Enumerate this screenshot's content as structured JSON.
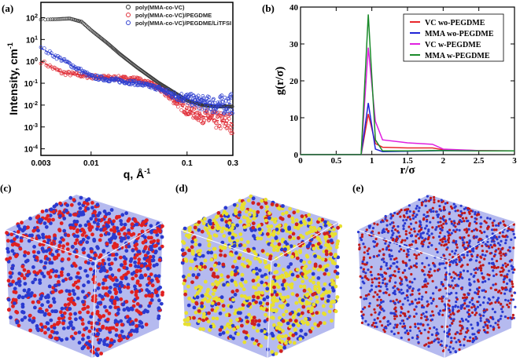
{
  "chart_data": [
    {
      "panel": "(a)",
      "type": "scatter",
      "xscale": "log",
      "yscale": "log",
      "xlabel": "q, Å",
      "xlabel_sup": "-1",
      "ylabel": "Intensity, cm",
      "ylabel_sup": "-1",
      "xlim": [
        0.003,
        0.3
      ],
      "ylim": [
        5e-05,
        500
      ],
      "xticks": [
        "0.003",
        "0.01",
        "0.1",
        "0.3"
      ],
      "xtick_values": [
        0.003,
        0.01,
        0.1,
        0.3
      ],
      "yticks": [
        {
          "base": "10",
          "exp": "2"
        },
        {
          "base": "10",
          "exp": "1"
        },
        {
          "base": "10",
          "exp": "0"
        },
        {
          "base": "10",
          "exp": "-1"
        },
        {
          "base": "10",
          "exp": "-2"
        },
        {
          "base": "10",
          "exp": "-3"
        },
        {
          "base": "10",
          "exp": "-4"
        }
      ],
      "ytick_values": [
        100,
        10,
        1,
        0.1,
        0.01,
        0.001,
        0.0001
      ],
      "legend": "top-right",
      "marker": "open-circle",
      "series": [
        {
          "name": "poly(MMA-co-VC)",
          "color": "#333333",
          "x": [
            0.003,
            0.004,
            0.006,
            0.008,
            0.01,
            0.015,
            0.02,
            0.03,
            0.05,
            0.07,
            0.1,
            0.15,
            0.2,
            0.3
          ],
          "y": [
            75,
            78,
            85,
            60,
            25,
            6,
            2,
            0.5,
            0.1,
            0.04,
            0.015,
            0.009,
            0.008,
            0.008
          ]
        },
        {
          "name": "poly(MMA-co-VC)/PEGDME",
          "color": "#e0303a",
          "x": [
            0.003,
            0.004,
            0.005,
            0.007,
            0.01,
            0.015,
            0.02,
            0.03,
            0.04,
            0.05,
            0.07,
            0.1,
            0.15,
            0.2,
            0.3
          ],
          "y": [
            1,
            0.5,
            0.3,
            0.25,
            0.2,
            0.18,
            0.17,
            0.15,
            0.1,
            0.06,
            0.02,
            0.006,
            0.003,
            0.002,
            0.0015
          ]
        },
        {
          "name": "poly(MMA-co-VC)/PEGDME/LiTFSI",
          "color": "#3040d0",
          "x": [
            0.003,
            0.004,
            0.005,
            0.007,
            0.01,
            0.015,
            0.02,
            0.03,
            0.05,
            0.07,
            0.1,
            0.15,
            0.2,
            0.3
          ],
          "y": [
            4,
            2,
            1.2,
            0.5,
            0.2,
            0.15,
            0.13,
            0.1,
            0.06,
            0.03,
            0.02,
            0.012,
            0.01,
            0.012
          ]
        }
      ]
    },
    {
      "panel": "(b)",
      "type": "line",
      "xlabel": "r/σ",
      "ylabel": "g(r/σ)",
      "xlim": [
        0,
        3
      ],
      "ylim": [
        0,
        40
      ],
      "xticks": [
        "0",
        "0.5",
        "1",
        "1.5",
        "2",
        "2.5",
        "3"
      ],
      "yticks": [
        "0",
        "10",
        "20",
        "30",
        "40"
      ],
      "legend": "top-right",
      "x": [
        0,
        0.85,
        0.95,
        1.05,
        1.15,
        1.5,
        1.85,
        2,
        2.5,
        3
      ],
      "series": [
        {
          "name": "VC wo-PEGDME",
          "color": "#e8262b",
          "values": [
            0,
            0,
            11,
            3,
            2,
            1.8,
            1.8,
            1.3,
            1.1,
            1
          ]
        },
        {
          "name": "MMA wo-PEGDME",
          "color": "#1f22d6",
          "values": [
            0,
            0,
            14,
            1.5,
            0.8,
            0.9,
            1,
            1.1,
            1,
            1
          ]
        },
        {
          "name": "VC w-PEGDME",
          "color": "#e020e0",
          "values": [
            0,
            0,
            29,
            9,
            4,
            3.2,
            2.8,
            1.5,
            1.1,
            1
          ]
        },
        {
          "name": "MMA w-PEGDME",
          "color": "#1a8a2a",
          "values": [
            0,
            0,
            38,
            4,
            1,
            1,
            1.1,
            1.1,
            1,
            1
          ]
        }
      ]
    }
  ],
  "snapshots": [
    {
      "label": "(c)",
      "colors": [
        "#e02020",
        "#2a3ad0"
      ]
    },
    {
      "label": "(d)",
      "colors": [
        "#e8e030",
        "#2a3ad0",
        "#d02020"
      ]
    },
    {
      "label": "(e)",
      "colors": [
        "#c01818",
        "#2a3ad0"
      ]
    }
  ]
}
